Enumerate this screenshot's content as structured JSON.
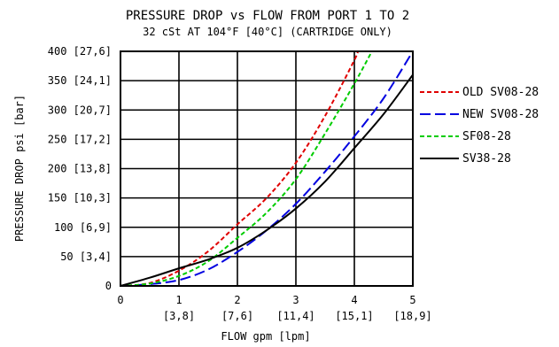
{
  "chart_data": {
    "type": "line",
    "title": "PRESSURE DROP vs FLOW FROM PORT 1 TO 2",
    "subtitle": "32 cSt AT 104°F [40°C] (CARTRIDGE ONLY)",
    "xlabel": "FLOW gpm [lpm]",
    "ylabel": "PRESSURE DROP psi [bar]",
    "xlim": [
      0,
      5
    ],
    "ylim": [
      0,
      400
    ],
    "grid": true,
    "legend_position": "right",
    "x_ticks": [
      {
        "value": 0,
        "label": "0",
        "sub": ""
      },
      {
        "value": 1,
        "label": "1",
        "sub": "[3,8]"
      },
      {
        "value": 2,
        "label": "2",
        "sub": "[7,6]"
      },
      {
        "value": 3,
        "label": "3",
        "sub": "[11,4]"
      },
      {
        "value": 4,
        "label": "4",
        "sub": "[15,1]"
      },
      {
        "value": 5,
        "label": "5",
        "sub": "[18,9]"
      }
    ],
    "y_ticks": [
      {
        "value": 0,
        "label": "0"
      },
      {
        "value": 50,
        "label": "50 [3,4]"
      },
      {
        "value": 100,
        "label": "100 [6,9]"
      },
      {
        "value": 150,
        "label": "150 [10,3]"
      },
      {
        "value": 200,
        "label": "200 [13,8]"
      },
      {
        "value": 250,
        "label": "250 [17,2]"
      },
      {
        "value": 300,
        "label": "300 [20,7]"
      },
      {
        "value": 350,
        "label": "350 [24,1]"
      },
      {
        "value": 400,
        "label": "400 [27,6]"
      }
    ],
    "series": [
      {
        "name": "OLD SV08-28",
        "color": "#e00000",
        "dash": "short",
        "x": [
          0,
          0.5,
          1.0,
          1.5,
          2.0,
          2.5,
          3.0,
          3.5,
          4.0,
          4.05
        ],
        "y": [
          0,
          5,
          26,
          59,
          105,
          150,
          210,
          290,
          385,
          400
        ]
      },
      {
        "name": "NEW SV08-28",
        "color": "#0000e0",
        "dash": "long",
        "x": [
          0,
          0.5,
          1.0,
          1.5,
          2.0,
          2.5,
          3.0,
          3.5,
          4.0,
          4.5,
          5.0
        ],
        "y": [
          0,
          3,
          10,
          28,
          58,
          95,
          140,
          195,
          255,
          320,
          400
        ]
      },
      {
        "name": "SF08-28",
        "color": "#00cc00",
        "dash": "short",
        "x": [
          0,
          0.5,
          1.0,
          1.5,
          2.0,
          2.5,
          3.0,
          3.5,
          4.0,
          4.3
        ],
        "y": [
          0,
          4,
          17,
          42,
          82,
          125,
          182,
          260,
          345,
          400
        ]
      },
      {
        "name": "SV38-28",
        "color": "#000000",
        "dash": "solid",
        "x": [
          0,
          0.5,
          1.0,
          1.5,
          2.0,
          2.5,
          3.0,
          3.5,
          4.0,
          4.5,
          5.0
        ],
        "y": [
          0,
          14,
          30,
          45,
          65,
          95,
          132,
          178,
          235,
          293,
          360
        ]
      }
    ]
  }
}
